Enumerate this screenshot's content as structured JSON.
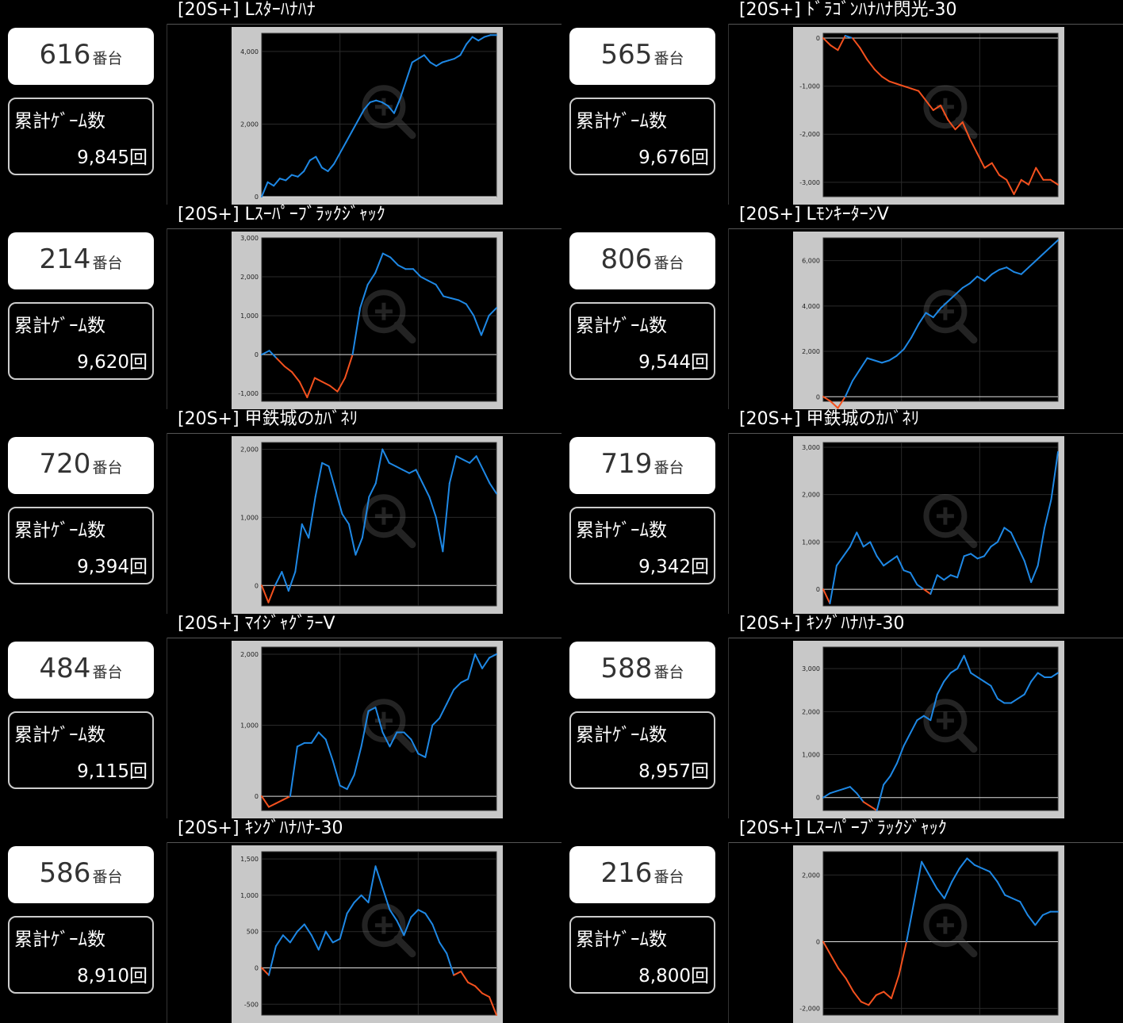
{
  "labels": {
    "machine_suffix": "番台",
    "games_label": "累計ｹﾞｰﾑ数"
  },
  "colors": {
    "plus": "#1e88e5",
    "minus": "#f4511e"
  },
  "icons": {
    "graph_zoom": "magnifier-plus-icon"
  },
  "machines": [
    {
      "title": "[20S+] Lｽﾀｰﾊﾅﾊﾅ",
      "number": "616",
      "games": "9,845回"
    },
    {
      "title": "[20S+] ﾄﾞﾗｺﾞﾝﾊﾅﾊﾅ閃光-30",
      "number": "565",
      "games": "9,676回"
    },
    {
      "title": "[20S+] Lｽｰﾊﾟｰﾌﾞﾗｯｸｼﾞｬｯｸ",
      "number": "214",
      "games": "9,620回"
    },
    {
      "title": "[20S+] LﾓﾝｷｰﾀｰﾝV",
      "number": "806",
      "games": "9,544回"
    },
    {
      "title": "[20S+] 甲鉄城のｶﾊﾞﾈﾘ",
      "number": "720",
      "games": "9,394回"
    },
    {
      "title": "[20S+] 甲鉄城のｶﾊﾞﾈﾘ",
      "number": "719",
      "games": "9,342回"
    },
    {
      "title": "[20S+] ﾏｲｼﾞｬｸﾞﾗｰV",
      "number": "484",
      "games": "9,115回"
    },
    {
      "title": "[20S+] ｷﾝｸﾞﾊﾅﾊﾅ-30",
      "number": "588",
      "games": "8,957回"
    },
    {
      "title": "[20S+] ｷﾝｸﾞﾊﾅﾊﾅ-30",
      "number": "586",
      "games": "8,910回"
    },
    {
      "title": "[20S+] Lｽｰﾊﾟｰﾌﾞﾗｯｸｼﾞｬｯｸ",
      "number": "216",
      "games": "8,800回"
    }
  ],
  "chart_data": [
    {
      "type": "line",
      "ylim": [
        0,
        4500
      ],
      "yticks": [
        "0",
        "2,000",
        "4,000"
      ],
      "ytick_values": [
        0,
        2000,
        4000
      ],
      "values": [
        0,
        400,
        300,
        500,
        450,
        600,
        550,
        700,
        1000,
        1100,
        800,
        700,
        900,
        1200,
        1500,
        1800,
        2100,
        2400,
        2600,
        2650,
        2600,
        2500,
        2300,
        2700,
        3200,
        3700,
        3800,
        3900,
        3700,
        3600,
        3700,
        3750,
        3800,
        3900,
        4200,
        4400,
        4300,
        4400,
        4450,
        4450
      ]
    },
    {
      "type": "line",
      "ylim": [
        -3300,
        100
      ],
      "yticks": [
        "0",
        "-1,000",
        "-2,000",
        "-3,000"
      ],
      "ytick_values": [
        0,
        -1000,
        -2000,
        -3000
      ],
      "values": [
        0,
        -150,
        -250,
        50,
        0,
        -200,
        -450,
        -650,
        -800,
        -900,
        -950,
        -1000,
        -1050,
        -1100,
        -1300,
        -1500,
        -1400,
        -1700,
        -1900,
        -1750,
        -2100,
        -2400,
        -2700,
        -2600,
        -2850,
        -2950,
        -3250,
        -2950,
        -3050,
        -2700,
        -2950,
        -2950,
        -3050
      ]
    },
    {
      "type": "line",
      "ylim": [
        -1200,
        3000
      ],
      "yticks": [
        "3,000",
        "2,000",
        "1,000",
        "0",
        "-1,000"
      ],
      "ytick_values": [
        3000,
        2000,
        1000,
        0,
        -1000
      ],
      "values": [
        0,
        100,
        -100,
        -300,
        -450,
        -700,
        -1100,
        -600,
        -700,
        -800,
        -950,
        -600,
        0,
        1200,
        1800,
        2100,
        2600,
        2500,
        2300,
        2200,
        2200,
        2000,
        1900,
        1800,
        1500,
        1450,
        1400,
        1300,
        1000,
        500,
        1000,
        1200
      ]
    },
    {
      "type": "line",
      "ylim": [
        -200,
        7000
      ],
      "yticks": [
        "6,000",
        "4,000",
        "2,000",
        "0"
      ],
      "ytick_values": [
        6000,
        4000,
        2000,
        0
      ],
      "values": [
        0,
        -200,
        -500,
        0,
        700,
        1200,
        1700,
        1600,
        1500,
        1600,
        1800,
        2100,
        2600,
        3200,
        3700,
        3500,
        3900,
        4200,
        4500,
        4800,
        5000,
        5300,
        5100,
        5400,
        5600,
        5700,
        5500,
        5400,
        5700,
        6000,
        6300,
        6600,
        6900
      ]
    },
    {
      "type": "line",
      "ylim": [
        -300,
        2100
      ],
      "yticks": [
        "2,000",
        "1,000",
        "0"
      ],
      "ytick_values": [
        2000,
        1000,
        0
      ],
      "values": [
        0,
        -250,
        0,
        200,
        -80,
        200,
        900,
        700,
        1300,
        1800,
        1750,
        1400,
        1050,
        900,
        450,
        700,
        1300,
        1500,
        2000,
        1800,
        1750,
        1700,
        1650,
        1700,
        1500,
        1300,
        1000,
        500,
        1500,
        1900,
        1850,
        1800,
        1900,
        1700,
        1500,
        1350
      ]
    },
    {
      "type": "line",
      "ylim": [
        -350,
        3100
      ],
      "yticks": [
        "3,000",
        "2,000",
        "1,000",
        "0"
      ],
      "ytick_values": [
        3000,
        2000,
        1000,
        0
      ],
      "values": [
        0,
        -300,
        500,
        700,
        900,
        1200,
        900,
        1000,
        700,
        500,
        600,
        700,
        400,
        350,
        100,
        0,
        -100,
        300,
        200,
        300,
        250,
        700,
        750,
        650,
        700,
        900,
        1000,
        1300,
        1200,
        900,
        600,
        150,
        500,
        1300,
        1900,
        2900
      ]
    },
    {
      "type": "line",
      "ylim": [
        -200,
        2100
      ],
      "yticks": [
        "2,000",
        "1,000",
        "0"
      ],
      "ytick_values": [
        2000,
        1000,
        0
      ],
      "values": [
        0,
        -150,
        -100,
        -50,
        0,
        700,
        750,
        750,
        900,
        800,
        500,
        150,
        100,
        300,
        700,
        1200,
        1250,
        900,
        700,
        900,
        900,
        800,
        600,
        550,
        1000,
        1100,
        1300,
        1500,
        1600,
        1650,
        2000,
        1800,
        1950,
        2000
      ]
    },
    {
      "type": "line",
      "ylim": [
        -300,
        3500
      ],
      "yticks": [
        "3,000",
        "2,000",
        "1,000",
        "0"
      ],
      "ytick_values": [
        3000,
        2000,
        1000,
        0
      ],
      "values": [
        0,
        100,
        150,
        200,
        250,
        100,
        -100,
        -200,
        -300,
        300,
        500,
        800,
        1200,
        1500,
        1800,
        1900,
        1800,
        2400,
        2700,
        2900,
        3000,
        3300,
        2900,
        2800,
        2700,
        2600,
        2300,
        2200,
        2200,
        2300,
        2400,
        2700,
        2900,
        2800,
        2800,
        2900
      ]
    },
    {
      "type": "line",
      "ylim": [
        -650,
        1600
      ],
      "yticks": [
        "1,500",
        "1,000",
        "500",
        "0",
        "-500"
      ],
      "ytick_values": [
        1500,
        1000,
        500,
        0,
        -500
      ],
      "values": [
        0,
        -100,
        300,
        450,
        350,
        500,
        600,
        450,
        250,
        500,
        350,
        400,
        750,
        900,
        1000,
        900,
        1400,
        1100,
        800,
        650,
        450,
        700,
        800,
        750,
        600,
        350,
        200,
        -100,
        -50,
        -200,
        -250,
        -350,
        -400,
        -650
      ]
    },
    {
      "type": "line",
      "ylim": [
        -2200,
        2700
      ],
      "yticks": [
        "2,000",
        "0",
        "-2,000"
      ],
      "ytick_values": [
        2000,
        0,
        -2000
      ],
      "values": [
        0,
        -400,
        -800,
        -1100,
        -1500,
        -1800,
        -1900,
        -1600,
        -1500,
        -1700,
        -1000,
        0,
        1200,
        2400,
        2000,
        1600,
        1300,
        1800,
        2200,
        2500,
        2300,
        2200,
        2100,
        1800,
        1400,
        1300,
        1200,
        800,
        500,
        800,
        900,
        900
      ]
    }
  ]
}
